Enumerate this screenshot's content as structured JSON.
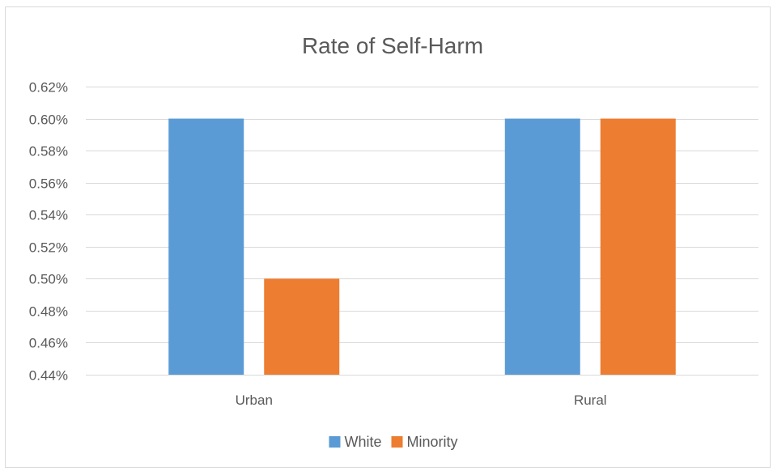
{
  "chart_data": {
    "type": "bar",
    "title": "Rate of Self-Harm",
    "xlabel": "",
    "ylabel": "",
    "categories": [
      "Urban",
      "Rural"
    ],
    "series": [
      {
        "name": "White",
        "values": [
          0.6,
          0.6
        ],
        "color": "#5b9bd5"
      },
      {
        "name": "Minority",
        "values": [
          0.5,
          0.6
        ],
        "color": "#ed7d31"
      }
    ],
    "value_unit": "%",
    "ylim": [
      0.44,
      0.62
    ],
    "ytick_step": 0.02,
    "y_ticks": [
      "0.44%",
      "0.46%",
      "0.48%",
      "0.50%",
      "0.52%",
      "0.54%",
      "0.56%",
      "0.58%",
      "0.60%",
      "0.62%"
    ],
    "grid": true,
    "gridline_color": "#d9d9d9",
    "legend_position": "bottom"
  }
}
